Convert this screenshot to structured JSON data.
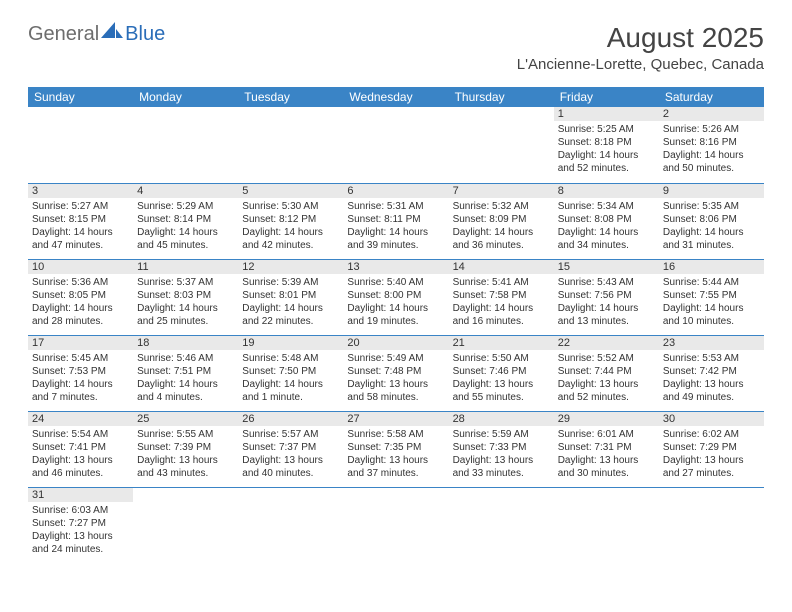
{
  "logo": {
    "part1": "General",
    "part2": "Blue"
  },
  "title": "August 2025",
  "location": "L'Ancienne-Lorette, Quebec, Canada",
  "colors": {
    "header_bg": "#3a84c6",
    "header_text": "#ffffff",
    "daynum_bg": "#e9e9e9",
    "rule": "#3a84c6",
    "logo_gray": "#6d6d6d",
    "logo_blue": "#2a6db8"
  },
  "weekdays": [
    "Sunday",
    "Monday",
    "Tuesday",
    "Wednesday",
    "Thursday",
    "Friday",
    "Saturday"
  ],
  "layout": {
    "columns": 7,
    "rows": 6,
    "first_weekday_index": 5,
    "days_in_month": 31
  },
  "days": [
    {
      "n": 1,
      "sunrise": "5:25 AM",
      "sunset": "8:18 PM",
      "daylight": "14 hours and 52 minutes."
    },
    {
      "n": 2,
      "sunrise": "5:26 AM",
      "sunset": "8:16 PM",
      "daylight": "14 hours and 50 minutes."
    },
    {
      "n": 3,
      "sunrise": "5:27 AM",
      "sunset": "8:15 PM",
      "daylight": "14 hours and 47 minutes."
    },
    {
      "n": 4,
      "sunrise": "5:29 AM",
      "sunset": "8:14 PM",
      "daylight": "14 hours and 45 minutes."
    },
    {
      "n": 5,
      "sunrise": "5:30 AM",
      "sunset": "8:12 PM",
      "daylight": "14 hours and 42 minutes."
    },
    {
      "n": 6,
      "sunrise": "5:31 AM",
      "sunset": "8:11 PM",
      "daylight": "14 hours and 39 minutes."
    },
    {
      "n": 7,
      "sunrise": "5:32 AM",
      "sunset": "8:09 PM",
      "daylight": "14 hours and 36 minutes."
    },
    {
      "n": 8,
      "sunrise": "5:34 AM",
      "sunset": "8:08 PM",
      "daylight": "14 hours and 34 minutes."
    },
    {
      "n": 9,
      "sunrise": "5:35 AM",
      "sunset": "8:06 PM",
      "daylight": "14 hours and 31 minutes."
    },
    {
      "n": 10,
      "sunrise": "5:36 AM",
      "sunset": "8:05 PM",
      "daylight": "14 hours and 28 minutes."
    },
    {
      "n": 11,
      "sunrise": "5:37 AM",
      "sunset": "8:03 PM",
      "daylight": "14 hours and 25 minutes."
    },
    {
      "n": 12,
      "sunrise": "5:39 AM",
      "sunset": "8:01 PM",
      "daylight": "14 hours and 22 minutes."
    },
    {
      "n": 13,
      "sunrise": "5:40 AM",
      "sunset": "8:00 PM",
      "daylight": "14 hours and 19 minutes."
    },
    {
      "n": 14,
      "sunrise": "5:41 AM",
      "sunset": "7:58 PM",
      "daylight": "14 hours and 16 minutes."
    },
    {
      "n": 15,
      "sunrise": "5:43 AM",
      "sunset": "7:56 PM",
      "daylight": "14 hours and 13 minutes."
    },
    {
      "n": 16,
      "sunrise": "5:44 AM",
      "sunset": "7:55 PM",
      "daylight": "14 hours and 10 minutes."
    },
    {
      "n": 17,
      "sunrise": "5:45 AM",
      "sunset": "7:53 PM",
      "daylight": "14 hours and 7 minutes."
    },
    {
      "n": 18,
      "sunrise": "5:46 AM",
      "sunset": "7:51 PM",
      "daylight": "14 hours and 4 minutes."
    },
    {
      "n": 19,
      "sunrise": "5:48 AM",
      "sunset": "7:50 PM",
      "daylight": "14 hours and 1 minute."
    },
    {
      "n": 20,
      "sunrise": "5:49 AM",
      "sunset": "7:48 PM",
      "daylight": "13 hours and 58 minutes."
    },
    {
      "n": 21,
      "sunrise": "5:50 AM",
      "sunset": "7:46 PM",
      "daylight": "13 hours and 55 minutes."
    },
    {
      "n": 22,
      "sunrise": "5:52 AM",
      "sunset": "7:44 PM",
      "daylight": "13 hours and 52 minutes."
    },
    {
      "n": 23,
      "sunrise": "5:53 AM",
      "sunset": "7:42 PM",
      "daylight": "13 hours and 49 minutes."
    },
    {
      "n": 24,
      "sunrise": "5:54 AM",
      "sunset": "7:41 PM",
      "daylight": "13 hours and 46 minutes."
    },
    {
      "n": 25,
      "sunrise": "5:55 AM",
      "sunset": "7:39 PM",
      "daylight": "13 hours and 43 minutes."
    },
    {
      "n": 26,
      "sunrise": "5:57 AM",
      "sunset": "7:37 PM",
      "daylight": "13 hours and 40 minutes."
    },
    {
      "n": 27,
      "sunrise": "5:58 AM",
      "sunset": "7:35 PM",
      "daylight": "13 hours and 37 minutes."
    },
    {
      "n": 28,
      "sunrise": "5:59 AM",
      "sunset": "7:33 PM",
      "daylight": "13 hours and 33 minutes."
    },
    {
      "n": 29,
      "sunrise": "6:01 AM",
      "sunset": "7:31 PM",
      "daylight": "13 hours and 30 minutes."
    },
    {
      "n": 30,
      "sunrise": "6:02 AM",
      "sunset": "7:29 PM",
      "daylight": "13 hours and 27 minutes."
    },
    {
      "n": 31,
      "sunrise": "6:03 AM",
      "sunset": "7:27 PM",
      "daylight": "13 hours and 24 minutes."
    }
  ],
  "labels": {
    "sunrise": "Sunrise:",
    "sunset": "Sunset:",
    "daylight": "Daylight:"
  }
}
